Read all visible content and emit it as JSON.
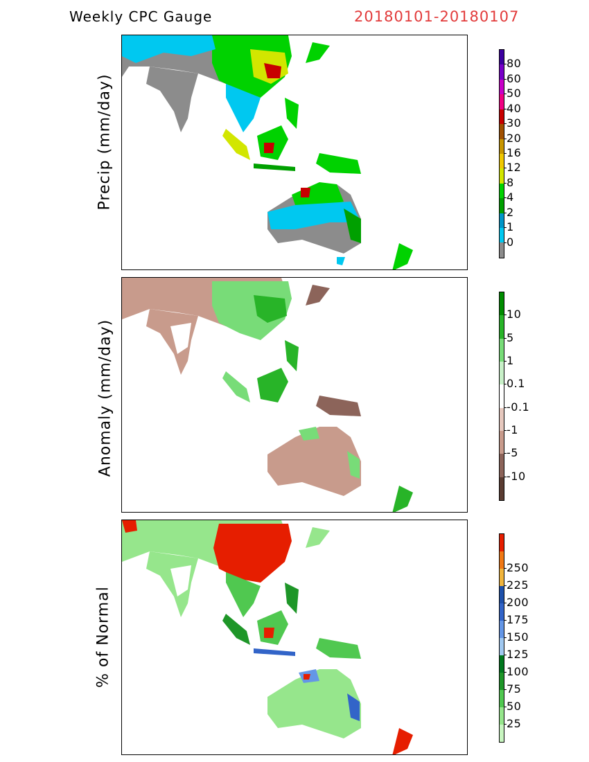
{
  "header": {
    "title": "Weekly CPC Gauge",
    "date_range": "20180101-20180107",
    "date_color": "#e23a3a"
  },
  "panels": [
    {
      "label": "Precip (mm/day)",
      "colorbar": {
        "colors": [
          "#8c8c8c",
          "#00c8f0",
          "#0096c8",
          "#00a000",
          "#00d200",
          "#d2e600",
          "#f0c800",
          "#c89600",
          "#a05000",
          "#c80000",
          "#f00082",
          "#c800c8",
          "#7800c8",
          "#3c00a0"
        ],
        "labels": [
          "0",
          "1",
          "2",
          "4",
          "8",
          "12",
          "16",
          "20",
          "30",
          "40",
          "50",
          "60",
          "80"
        ]
      }
    },
    {
      "label": "Anomaly (mm/day)",
      "colorbar": {
        "colors": [
          "#5a3c32",
          "#8c645a",
          "#c89b8c",
          "#e6c8be",
          "#ffffff",
          "#c8f0c8",
          "#78dc78",
          "#28b428",
          "#008c00"
        ],
        "labels": [
          "-10",
          "-5",
          "-1",
          "-0.1",
          "0.1",
          "1",
          "5",
          "10"
        ]
      }
    },
    {
      "label": "% of Normal",
      "colorbar": {
        "colors": [
          "#c8f5c0",
          "#96e68c",
          "#50c850",
          "#1e9628",
          "#00781e",
          "#a0c8f0",
          "#6496e6",
          "#3264c8",
          "#1e50aa",
          "#f0b43c",
          "#f07814",
          "#e61e00"
        ],
        "labels": [
          "25",
          "50",
          "75",
          "100",
          "125",
          "150",
          "175",
          "200",
          "225",
          "250"
        ]
      }
    }
  ]
}
